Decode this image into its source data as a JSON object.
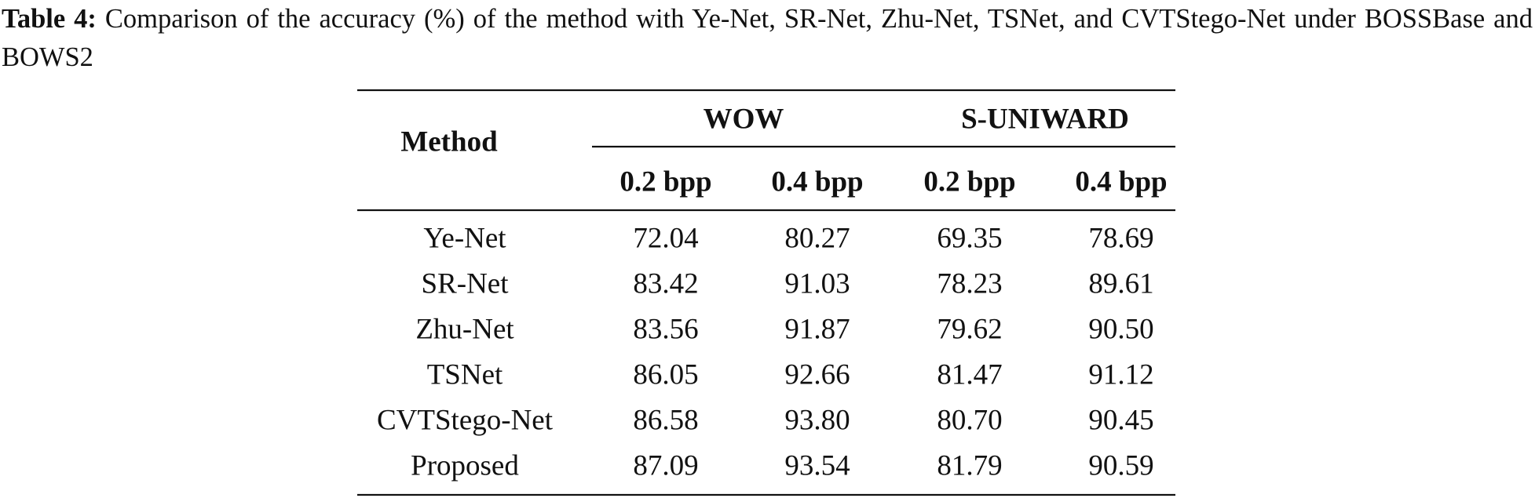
{
  "caption": {
    "label": "Table 4:",
    "text": "Comparison of the accuracy (%) of the method with Ye-Net, SR-Net, Zhu-Net, TSNet, and CVTStego-Net under BOSSBase and BOWS2"
  },
  "table": {
    "header": {
      "method": "Method",
      "groups": [
        "WOW",
        "S-UNIWARD"
      ],
      "subheaders": [
        "0.2 bpp",
        "0.4 bpp",
        "0.2 bpp",
        "0.4 bpp"
      ]
    },
    "rows": [
      [
        "Ye-Net",
        "72.04",
        "80.27",
        "69.35",
        "78.69"
      ],
      [
        "SR-Net",
        "83.42",
        "91.03",
        "78.23",
        "89.61"
      ],
      [
        "Zhu-Net",
        "83.56",
        "91.87",
        "79.62",
        "90.50"
      ],
      [
        "TSNet",
        "86.05",
        "92.66",
        "81.47",
        "91.12"
      ],
      [
        "CVTStego-Net",
        "86.58",
        "93.80",
        "80.70",
        "90.45"
      ],
      [
        "Proposed",
        "87.09",
        "93.54",
        "81.79",
        "90.59"
      ]
    ]
  }
}
